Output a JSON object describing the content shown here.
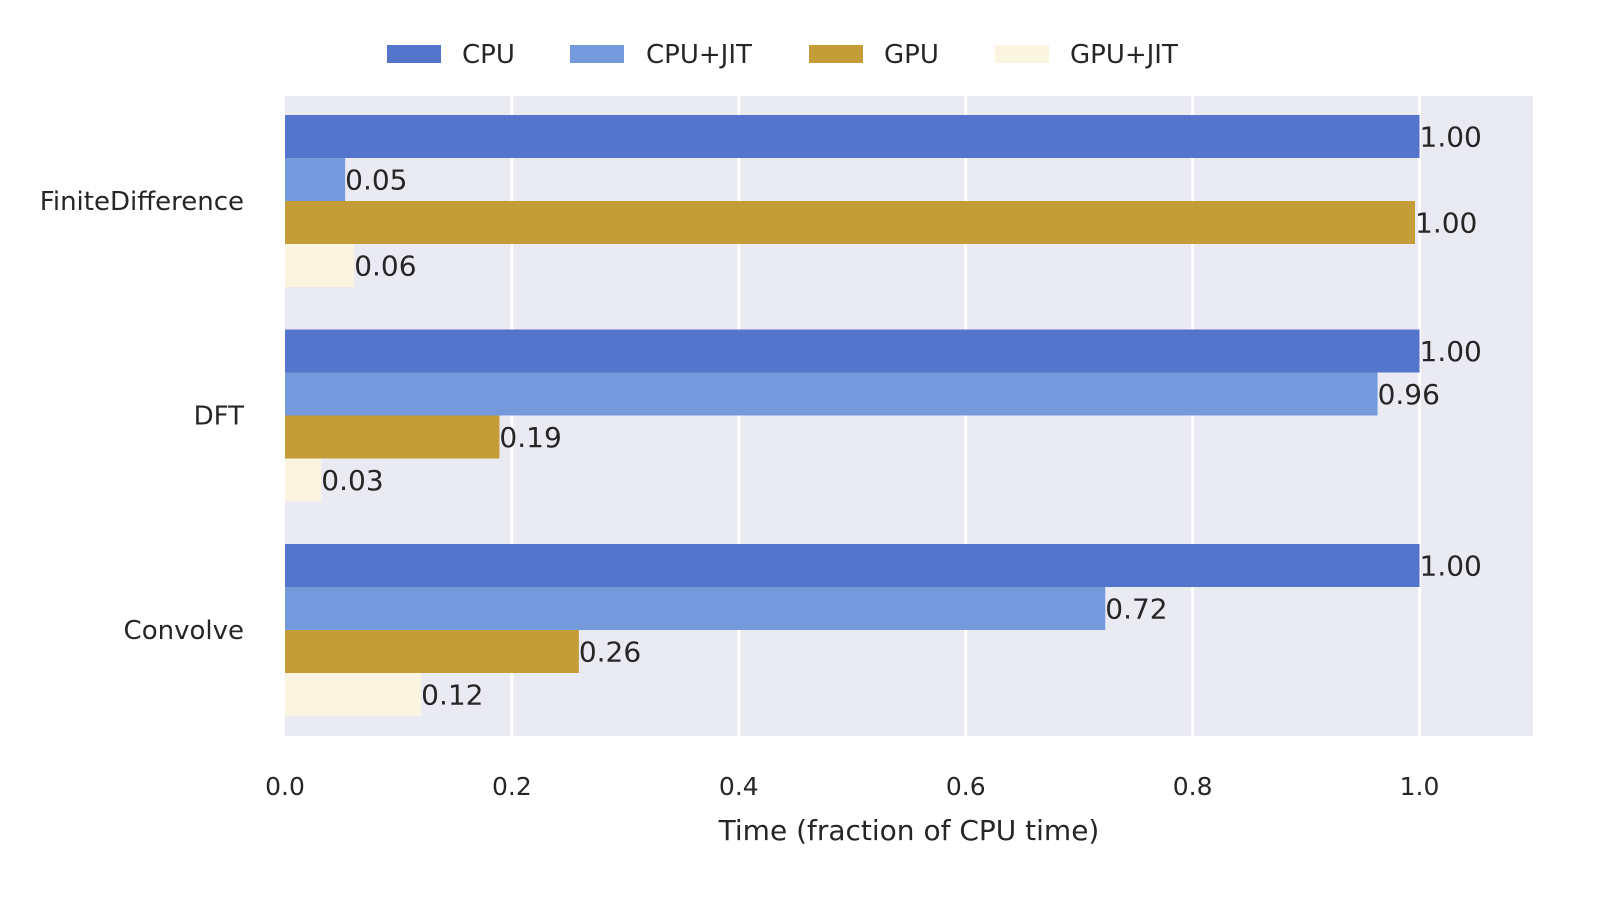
{
  "chart_data": {
    "type": "bar",
    "orientation": "horizontal",
    "categories": [
      "FiniteDifference",
      "DFT",
      "Convolve"
    ],
    "series": [
      {
        "name": "CPU",
        "color": "#5574cc",
        "values": [
          1.0,
          1.0,
          1.0
        ],
        "labels": [
          "1.00",
          "1.00",
          "1.00"
        ]
      },
      {
        "name": "CPU+JIT",
        "color": "#759adc",
        "values": [
          0.053,
          0.963,
          0.723
        ],
        "labels": [
          "0.05",
          "0.96",
          "0.72"
        ]
      },
      {
        "name": "GPU",
        "color": "#c49c38",
        "values": [
          0.996,
          0.189,
          0.259
        ],
        "labels": [
          "1.00",
          "0.19",
          "0.26"
        ]
      },
      {
        "name": "GPU+JIT",
        "color": "#fbf4e0",
        "values": [
          0.061,
          0.032,
          0.12
        ],
        "labels": [
          "0.06",
          "0.03",
          "0.12"
        ]
      }
    ],
    "xlabel": "Time (fraction of CPU time)",
    "xlim": [
      0.0,
      1.1
    ],
    "xticks": [
      "0.0",
      "0.2",
      "0.4",
      "0.6",
      "0.8",
      "1.0"
    ],
    "grid": true,
    "legend_position": "top"
  }
}
